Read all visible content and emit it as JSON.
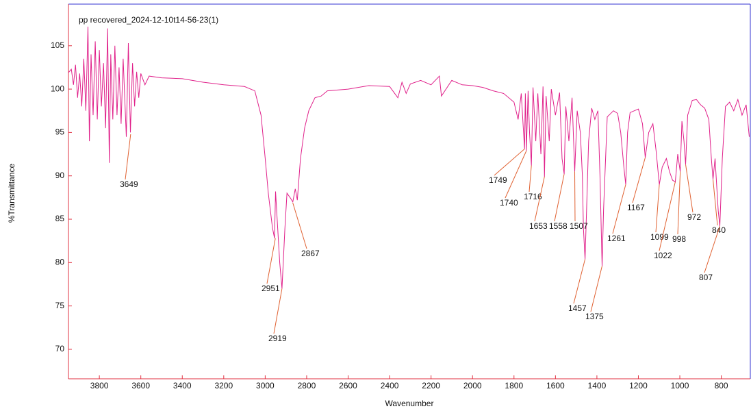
{
  "chart_data": {
    "type": "line",
    "title": "pp recovered_2024-12-10t14-56-23(1)",
    "xlabel": "Wavenumber",
    "ylabel": "%Transmittance",
    "color": "#e0208a",
    "xlim": [
      3949,
      660
    ],
    "ylim": [
      66.6,
      109.8
    ],
    "xticks": [
      3800,
      3600,
      3400,
      3200,
      3000,
      2800,
      2600,
      2400,
      2200,
      2000,
      1800,
      1600,
      1400,
      1200,
      1000,
      800
    ],
    "yticks": [
      70,
      75,
      80,
      85,
      90,
      95,
      100,
      105
    ],
    "x": [
      3949,
      3935,
      3925,
      3915,
      3905,
      3895,
      3885,
      3875,
      3865,
      3855,
      3848,
      3840,
      3830,
      3820,
      3810,
      3800,
      3790,
      3780,
      3770,
      3760,
      3752,
      3745,
      3735,
      3725,
      3715,
      3705,
      3695,
      3685,
      3670,
      3660,
      3650,
      3640,
      3630,
      3620,
      3610,
      3600,
      3580,
      3560,
      3500,
      3400,
      3300,
      3200,
      3100,
      3050,
      3020,
      3000,
      2985,
      2965,
      2955,
      2950,
      2940,
      2930,
      2919,
      2905,
      2895,
      2880,
      2867,
      2855,
      2845,
      2830,
      2810,
      2790,
      2760,
      2730,
      2700,
      2600,
      2500,
      2400,
      2360,
      2340,
      2320,
      2300,
      2250,
      2200,
      2160,
      2150,
      2100,
      2050,
      2000,
      1950,
      1900,
      1850,
      1800,
      1780,
      1765,
      1749,
      1745,
      1740,
      1732,
      1725,
      1716,
      1708,
      1695,
      1685,
      1670,
      1660,
      1653,
      1645,
      1630,
      1620,
      1600,
      1580,
      1568,
      1558,
      1550,
      1535,
      1520,
      1507,
      1495,
      1480,
      1470,
      1465,
      1457,
      1450,
      1440,
      1425,
      1410,
      1395,
      1385,
      1375,
      1368,
      1350,
      1320,
      1300,
      1285,
      1270,
      1261,
      1252,
      1240,
      1200,
      1180,
      1167,
      1150,
      1130,
      1115,
      1099,
      1085,
      1065,
      1050,
      1035,
      1022,
      1010,
      998,
      990,
      980,
      972,
      962,
      940,
      920,
      900,
      880,
      860,
      848,
      840,
      830,
      815,
      807,
      795,
      780,
      760,
      740,
      720,
      700,
      680,
      665
    ],
    "values": [
      101.9,
      102.3,
      100.5,
      102.8,
      99.0,
      101.8,
      98.0,
      103.5,
      97.5,
      107.2,
      94.0,
      104.0,
      97.0,
      105.5,
      96.5,
      104.5,
      98.0,
      103.0,
      95.5,
      107.0,
      91.5,
      104.0,
      96.5,
      105.0,
      97.0,
      102.5,
      96.0,
      103.5,
      94.5,
      105.3,
      95.0,
      103.0,
      98.0,
      102.0,
      99.0,
      101.8,
      100.5,
      101.5,
      101.3,
      101.2,
      100.8,
      100.5,
      100.3,
      99.8,
      97,
      92,
      88,
      84,
      82.8,
      88.2,
      84,
      80,
      77.0,
      84,
      88,
      87.5,
      87.0,
      88.5,
      87.2,
      92,
      95.5,
      97.5,
      99.0,
      99.2,
      99.8,
      100.0,
      100.4,
      100.3,
      99.0,
      100.8,
      99.5,
      100.6,
      101.0,
      100.5,
      101.5,
      99.2,
      101.0,
      100.5,
      100.4,
      100.2,
      99.8,
      99.5,
      98.5,
      96.5,
      99.5,
      93.1,
      99.5,
      92.9,
      99.8,
      95,
      91.2,
      100.2,
      94,
      99.5,
      92.5,
      100.3,
      89.9,
      99.2,
      94,
      100.0,
      97,
      99.6,
      92.0,
      90.2,
      98,
      94,
      99.0,
      90.5,
      97.5,
      95,
      90,
      84,
      80.4,
      86,
      94,
      97.8,
      96.5,
      97.5,
      90,
      79.6,
      86,
      96.8,
      97.5,
      97.2,
      95,
      91,
      89.0,
      95,
      97.3,
      97.7,
      96,
      92.1,
      95,
      96,
      93,
      89.0,
      91,
      92,
      90.5,
      89.5,
      89.3,
      92.5,
      90.5,
      96.3,
      94,
      91.3,
      97,
      98.7,
      98.8,
      98.2,
      97.8,
      96.5,
      92,
      89.6,
      92,
      86,
      84.2,
      92,
      98,
      98.5,
      97.5,
      98.8,
      97.0,
      98.2,
      94.5
    ],
    "annotations": [
      {
        "x": 3649,
        "y": 94.8
      },
      {
        "x": 2951,
        "y": 82.8
      },
      {
        "x": 2919,
        "y": 77.0
      },
      {
        "x": 2867,
        "y": 86.9
      },
      {
        "x": 1749,
        "y": 93.1
      },
      {
        "x": 1740,
        "y": 92.9
      },
      {
        "x": 1716,
        "y": 91.2
      },
      {
        "x": 1653,
        "y": 89.9
      },
      {
        "x": 1558,
        "y": 90.2
      },
      {
        "x": 1507,
        "y": 90.5
      },
      {
        "x": 1457,
        "y": 80.4
      },
      {
        "x": 1375,
        "y": 79.6
      },
      {
        "x": 1261,
        "y": 89.0
      },
      {
        "x": 1167,
        "y": 92.1
      },
      {
        "x": 1099,
        "y": 89.0
      },
      {
        "x": 1022,
        "y": 89.3
      },
      {
        "x": 998,
        "y": 90.5
      },
      {
        "x": 972,
        "y": 91.3
      },
      {
        "x": 840,
        "y": 89.6
      },
      {
        "x": 807,
        "y": 84.2
      }
    ]
  }
}
